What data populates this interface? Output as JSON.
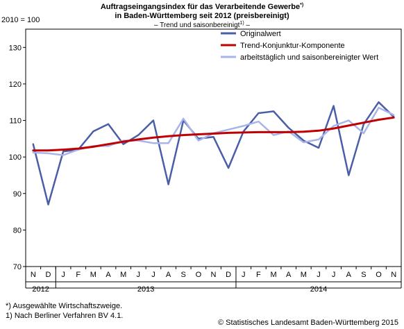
{
  "header": {
    "title_line1": "Auftragseingangsindex für das Verarbeitende Gewerbe",
    "title_line1_sup": "*)",
    "title_line2": "in Baden-Württemberg seit 2012 (preisbereinigt)",
    "subtitle_pre": "– Trend und saisonbereinigt",
    "subtitle_sup": "1)",
    "subtitle_post": " –",
    "base_label": "2010 = 100"
  },
  "footer": {
    "note1": "*) Ausgewählte Wirtschaftszweige.",
    "note2": "1) Nach Berliner Verfahren BV 4.1.",
    "copyright": "© Statistisches Landesamt Baden-Württemberg 2015"
  },
  "chart_data": {
    "type": "line",
    "categories": [
      "N",
      "D",
      "J",
      "F",
      "M",
      "A",
      "M",
      "J",
      "J",
      "A",
      "S",
      "O",
      "N",
      "D",
      "J",
      "F",
      "M",
      "A",
      "M",
      "J",
      "J",
      "A",
      "S",
      "O",
      "N"
    ],
    "years": [
      {
        "label": "2012",
        "start": 0,
        "end": 1
      },
      {
        "label": "2013",
        "start": 2,
        "end": 13
      },
      {
        "label": "2014",
        "start": 14,
        "end": 24
      }
    ],
    "ylim": [
      70,
      135
    ],
    "yticks": [
      70,
      80,
      90,
      100,
      110,
      120,
      130
    ],
    "grid": false,
    "legend_position": "top-right",
    "series": [
      {
        "name": "Originalwert",
        "color": "#4a5ea8",
        "values": [
          103.5,
          87,
          101.5,
          102,
          107,
          109,
          103.5,
          106,
          110,
          92.5,
          110,
          105,
          105.5,
          97,
          107,
          112,
          112.5,
          108,
          104.5,
          102.5,
          114,
          95,
          109,
          115,
          111
        ]
      },
      {
        "name": "Trend-Konjunktur-Komponente",
        "color": "#c00000",
        "values": [
          101.8,
          101.8,
          102,
          102.3,
          102.8,
          103.5,
          104.2,
          104.8,
          105.3,
          105.7,
          106,
          106.2,
          106.4,
          106.6,
          106.7,
          106.8,
          106.8,
          106.8,
          106.9,
          107.2,
          107.8,
          108.6,
          109.4,
          110.2,
          110.8
        ]
      },
      {
        "name": "arbeitstäglich und saisonbereinigter Wert",
        "color": "#a9b4e8",
        "values": [
          101.2,
          101,
          100.5,
          102,
          103,
          103,
          104.5,
          104.5,
          103.8,
          103.8,
          110.5,
          104.5,
          106.5,
          107.5,
          108.5,
          109.7,
          106,
          107,
          104,
          104.8,
          108.5,
          110,
          106.5,
          113.5,
          111.5
        ]
      }
    ]
  }
}
